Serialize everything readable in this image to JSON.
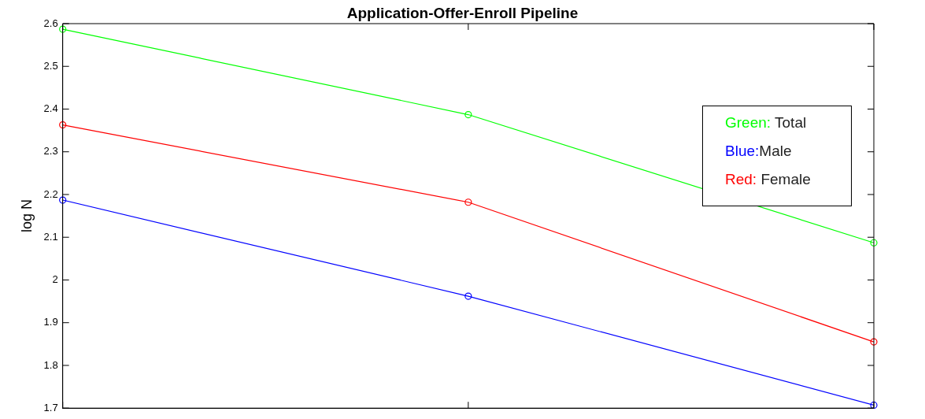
{
  "chart_data": {
    "type": "line",
    "title": "Application-Offer-Enroll Pipeline",
    "ylabel": "log N",
    "categories": [
      null,
      null,
      null
    ],
    "series": [
      {
        "name": "Green: Total",
        "color": "#00ff00",
        "values": [
          2.587,
          2.387,
          2.087
        ]
      },
      {
        "name": "Blue:Male",
        "color": "#0000ff",
        "values": [
          2.187,
          1.962,
          1.707
        ]
      },
      {
        "name": "Red: Female",
        "color": "#ff0000",
        "values": [
          2.363,
          2.182,
          1.855
        ]
      }
    ],
    "ylim": [
      1.7,
      2.6
    ],
    "yticks": [
      1.7,
      1.8,
      1.9,
      2,
      2.1,
      2.2,
      2.3,
      2.4,
      2.5,
      2.6
    ],
    "tick_labels": "y",
    "grid": false,
    "marker": "circle",
    "line_style": "solid"
  }
}
